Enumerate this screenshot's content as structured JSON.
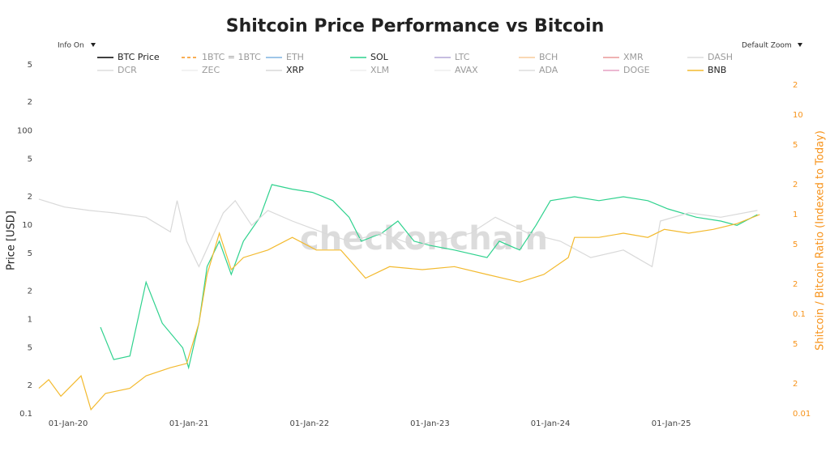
{
  "chart_data": {
    "type": "line",
    "title": "Shitcoin Price Performance vs Bitcoin",
    "controls": {
      "info": "Info On",
      "zoom": "Default Zoom"
    },
    "watermark": "checkonchain",
    "y_label": "Price [USD]",
    "y2_label": "Shitcoin / Bitcoin Ratio (Indexed to Today)",
    "y2_color": "#f7931a",
    "log_y": true,
    "log_y2": true,
    "grid": false,
    "xlim": [
      "2019-09-27",
      "2025-10-15"
    ],
    "xticks": [
      {
        "value": "2020-01-01",
        "label": "01-Jan-20"
      },
      {
        "value": "2021-01-01",
        "label": "01-Jan-21"
      },
      {
        "value": "2022-01-01",
        "label": "01-Jan-22"
      },
      {
        "value": "2023-01-01",
        "label": "01-Jan-23"
      },
      {
        "value": "2024-01-01",
        "label": "01-Jan-24"
      },
      {
        "value": "2025-01-01",
        "label": "01-Jan-25"
      }
    ],
    "ylim": [
      0.1,
      800
    ],
    "yticks": [
      0.1,
      {
        "value": 0.2,
        "label": "2"
      },
      {
        "value": 0.5,
        "label": "5"
      },
      1,
      {
        "value": 2,
        "label": "2"
      },
      {
        "value": 5,
        "label": "5"
      },
      10,
      {
        "value": 20,
        "label": "2"
      },
      {
        "value": 50,
        "label": "5"
      },
      100,
      {
        "value": 200,
        "label": "2"
      },
      {
        "value": 500,
        "label": "5"
      }
    ],
    "y2lim": [
      0.01,
      50
    ],
    "y2ticks": [
      0.01,
      {
        "value": 0.02,
        "label": "2"
      },
      {
        "value": 0.05,
        "label": "5"
      },
      0.1,
      {
        "value": 0.2,
        "label": "2"
      },
      {
        "value": 0.5,
        "label": "5"
      },
      1,
      {
        "value": 2,
        "label": "2"
      },
      {
        "value": 5,
        "label": "5"
      },
      10,
      {
        "value": 20,
        "label": "2"
      }
    ],
    "series": [
      {
        "name": "BTC Price",
        "color": "#000000",
        "visible": true
      },
      {
        "name": "1BTC = 1BTC",
        "color": "#f7931a",
        "dash": true,
        "visible": false
      },
      {
        "name": "ETH",
        "color": "#7fb3e0",
        "visible": false
      },
      {
        "name": "SOL",
        "color": "#2fd28e",
        "visible": true,
        "axis": "y2",
        "x": [
          "2020-04-08",
          "2020-05-18",
          "2020-07-06",
          "2020-08-24",
          "2020-10-12",
          "2020-12-13",
          "2020-12-31",
          "2021-01-31",
          "2021-02-25",
          "2021-04-03",
          "2021-05-09",
          "2021-06-15",
          "2021-08-04",
          "2021-09-09",
          "2021-11-10",
          "2022-01-10",
          "2022-03-13",
          "2022-05-01",
          "2022-06-07",
          "2022-08-08",
          "2022-09-26",
          "2022-11-14",
          "2023-01-01",
          "2023-03-16",
          "2023-06-23",
          "2023-07-30",
          "2023-09-30",
          "2023-11-18",
          "2024-01-01",
          "2024-03-14",
          "2024-05-27",
          "2024-08-09",
          "2024-10-22",
          "2024-12-22",
          "2025-03-18",
          "2025-05-31",
          "2025-07-19",
          "2025-09-19"
        ],
        "values": [
          0.074,
          0.035,
          0.038,
          0.21,
          0.081,
          0.046,
          0.029,
          0.081,
          0.3,
          0.54,
          0.25,
          0.54,
          0.94,
          2.0,
          1.8,
          1.67,
          1.38,
          0.94,
          0.54,
          0.65,
          0.86,
          0.54,
          0.49,
          0.44,
          0.37,
          0.54,
          0.44,
          0.78,
          1.38,
          1.51,
          1.38,
          1.51,
          1.38,
          1.14,
          0.94,
          0.86,
          0.78,
          1.0
        ]
      },
      {
        "name": "LTC",
        "color": "#b4a7d6",
        "visible": false
      },
      {
        "name": "BCH",
        "color": "#f9cb9c",
        "visible": false
      },
      {
        "name": "XMR",
        "color": "#ea9999",
        "visible": false
      },
      {
        "name": "DASH",
        "color": "#dddddd",
        "visible": false
      },
      {
        "name": "DCR",
        "color": "#dddddd",
        "visible": false
      },
      {
        "name": "ZEC",
        "color": "#eeeeee",
        "visible": false
      },
      {
        "name": "XRP",
        "color": "#d9d9d9",
        "visible": true,
        "axis": "y2",
        "x": [
          "2019-10-04",
          "2019-12-21",
          "2020-03-05",
          "2020-05-18",
          "2020-08-24",
          "2020-11-06",
          "2020-11-26",
          "2020-12-25",
          "2021-01-31",
          "2021-04-15",
          "2021-05-21",
          "2021-07-10",
          "2021-08-28",
          "2021-11-10",
          "2022-02-17",
          "2022-05-01",
          "2022-08-08",
          "2022-11-14",
          "2023-01-25",
          "2023-05-05",
          "2023-07-18",
          "2023-10-25",
          "2024-01-31",
          "2024-05-02",
          "2024-08-09",
          "2024-11-04",
          "2024-11-29",
          "2025-02-23",
          "2025-05-31",
          "2025-09-19"
        ],
        "values": [
          1.43,
          1.19,
          1.1,
          1.04,
          0.94,
          0.67,
          1.38,
          0.54,
          0.3,
          1.04,
          1.38,
          0.78,
          1.1,
          0.86,
          0.65,
          0.54,
          0.65,
          0.49,
          0.54,
          0.65,
          0.94,
          0.65,
          0.54,
          0.37,
          0.44,
          0.3,
          0.86,
          1.04,
          0.94,
          1.1
        ]
      },
      {
        "name": "XLM",
        "color": "#eeeeee",
        "visible": false
      },
      {
        "name": "AVAX",
        "color": "#eeeeee",
        "visible": false
      },
      {
        "name": "ADA",
        "color": "#dddddd",
        "visible": false
      },
      {
        "name": "DOGE",
        "color": "#e6a0c4",
        "visible": false
      },
      {
        "name": "BNB",
        "color": "#f3ba2f",
        "visible": true,
        "axis": "y2",
        "x": [
          "2019-10-04",
          "2019-11-03",
          "2019-12-10",
          "2020-02-09",
          "2020-03-10",
          "2020-04-23",
          "2020-07-06",
          "2020-08-24",
          "2020-11-06",
          "2020-12-25",
          "2021-01-31",
          "2021-02-25",
          "2021-04-03",
          "2021-05-09",
          "2021-06-15",
          "2021-08-28",
          "2021-11-10",
          "2022-01-22",
          "2022-04-06",
          "2022-06-20",
          "2022-09-01",
          "2022-12-09",
          "2023-03-16",
          "2023-06-23",
          "2023-09-30",
          "2023-12-12",
          "2024-02-24",
          "2024-03-14",
          "2024-05-27",
          "2024-08-09",
          "2024-10-22",
          "2024-12-11",
          "2025-02-23",
          "2025-05-08",
          "2025-07-19",
          "2025-09-26"
        ],
        "values": [
          0.018,
          0.022,
          0.015,
          0.024,
          0.011,
          0.016,
          0.018,
          0.024,
          0.029,
          0.032,
          0.081,
          0.25,
          0.65,
          0.28,
          0.37,
          0.44,
          0.59,
          0.44,
          0.44,
          0.23,
          0.3,
          0.28,
          0.3,
          0.25,
          0.21,
          0.25,
          0.37,
          0.59,
          0.59,
          0.65,
          0.59,
          0.71,
          0.65,
          0.71,
          0.81,
          1.0
        ]
      }
    ]
  }
}
